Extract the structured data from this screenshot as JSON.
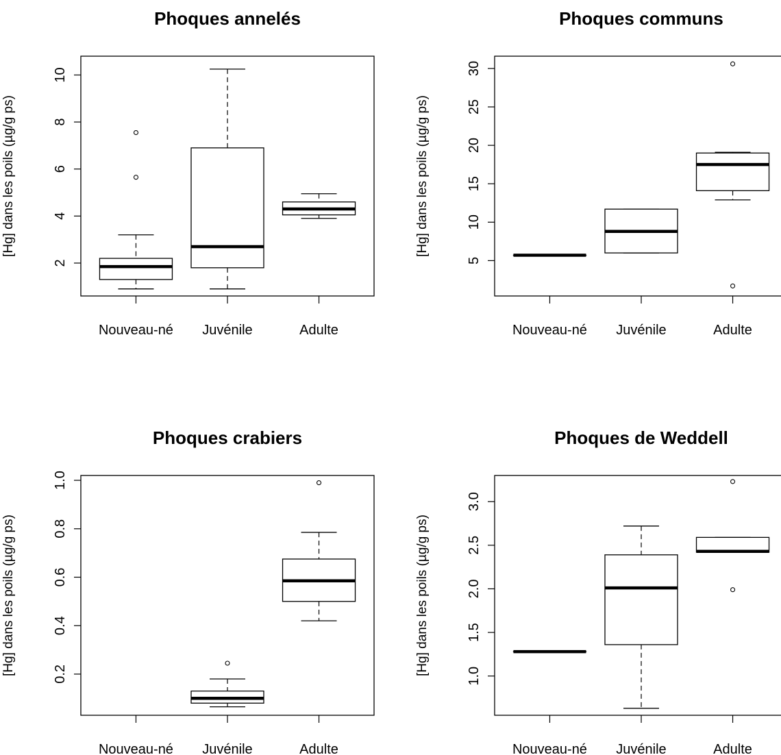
{
  "chart_data": [
    {
      "type": "boxplot",
      "title": "Phoques annelés",
      "ylabel": "[Hg] dans les poils (µg/g ps)",
      "categories": [
        "Nouveau-né",
        "Juvénile",
        "Adulte"
      ],
      "ylim": [
        0.6,
        10.8
      ],
      "yticks": [
        2,
        4,
        6,
        8,
        10
      ],
      "ytick_labels": [
        "2",
        "4",
        "6",
        "8",
        "10"
      ],
      "boxes": [
        {
          "category": "Nouveau-né",
          "min": 0.9,
          "q1": 1.3,
          "median": 1.85,
          "q3": 2.2,
          "max": 3.2,
          "outliers": [
            5.65,
            7.55
          ]
        },
        {
          "category": "Juvénile",
          "min": 0.9,
          "q1": 1.8,
          "median": 2.7,
          "q3": 6.9,
          "max": 10.25,
          "outliers": []
        },
        {
          "category": "Adulte",
          "min": 3.9,
          "q1": 4.05,
          "median": 4.3,
          "q3": 4.6,
          "max": 4.95,
          "outliers": []
        }
      ]
    },
    {
      "type": "boxplot",
      "title": "Phoques communs",
      "ylabel": "[Hg] dans les poils (µg/g ps)",
      "categories": [
        "Nouveau-né",
        "Juvénile",
        "Adulte"
      ],
      "ylim": [
        0.4,
        31.6
      ],
      "yticks": [
        5,
        10,
        15,
        20,
        25,
        30
      ],
      "ytick_labels": [
        "5",
        "10",
        "15",
        "20",
        "25",
        "30"
      ],
      "boxes": [
        {
          "category": "Nouveau-né",
          "min": 5.7,
          "q1": 5.7,
          "median": 5.7,
          "q3": 5.7,
          "max": 5.7,
          "outliers": []
        },
        {
          "category": "Juvénile",
          "min": 6.0,
          "q1": 6.0,
          "median": 8.8,
          "q3": 11.7,
          "max": 11.7,
          "outliers": []
        },
        {
          "category": "Adulte",
          "min": 12.9,
          "q1": 14.1,
          "median": 17.5,
          "q3": 19.0,
          "max": 19.1,
          "outliers": [
            1.7,
            30.6
          ]
        }
      ]
    },
    {
      "type": "boxplot",
      "title": "Phoques crabiers",
      "ylabel": "[Hg] dans les poils (µg/g ps)",
      "categories": [
        "Nouveau-né",
        "Juvénile",
        "Adulte"
      ],
      "ylim": [
        0.03,
        1.02
      ],
      "yticks": [
        0.2,
        0.4,
        0.6,
        0.8,
        1.0
      ],
      "ytick_labels": [
        "0.2",
        "0.4",
        "0.6",
        "0.8",
        "1.0"
      ],
      "boxes": [
        {
          "category": "Juvénile",
          "min": 0.065,
          "q1": 0.08,
          "median": 0.1,
          "q3": 0.13,
          "max": 0.18,
          "outliers": [
            0.245
          ]
        },
        {
          "category": "Adulte",
          "min": 0.42,
          "q1": 0.5,
          "median": 0.585,
          "q3": 0.675,
          "max": 0.785,
          "outliers": [
            0.99
          ]
        }
      ]
    },
    {
      "type": "boxplot",
      "title": "Phoques de Weddell",
      "ylabel": "[Hg] dans les poils (µg/g ps)",
      "categories": [
        "Nouveau-né",
        "Juvénile",
        "Adulte"
      ],
      "ylim": [
        0.55,
        3.3
      ],
      "yticks": [
        1.0,
        1.5,
        2.0,
        2.5,
        3.0
      ],
      "ytick_labels": [
        "1.0",
        "1.5",
        "2.0",
        "2.5",
        "3.0"
      ],
      "boxes": [
        {
          "category": "Nouveau-né",
          "min": 1.28,
          "q1": 1.28,
          "median": 1.28,
          "q3": 1.28,
          "max": 1.28,
          "outliers": []
        },
        {
          "category": "Juvénile",
          "min": 0.63,
          "q1": 1.36,
          "median": 2.01,
          "q3": 2.39,
          "max": 2.72,
          "outliers": []
        },
        {
          "category": "Adulte",
          "min": 2.42,
          "q1": 2.42,
          "median": 2.43,
          "q3": 2.59,
          "max": 2.59,
          "outliers": [
            1.99,
            3.23
          ]
        }
      ]
    }
  ]
}
